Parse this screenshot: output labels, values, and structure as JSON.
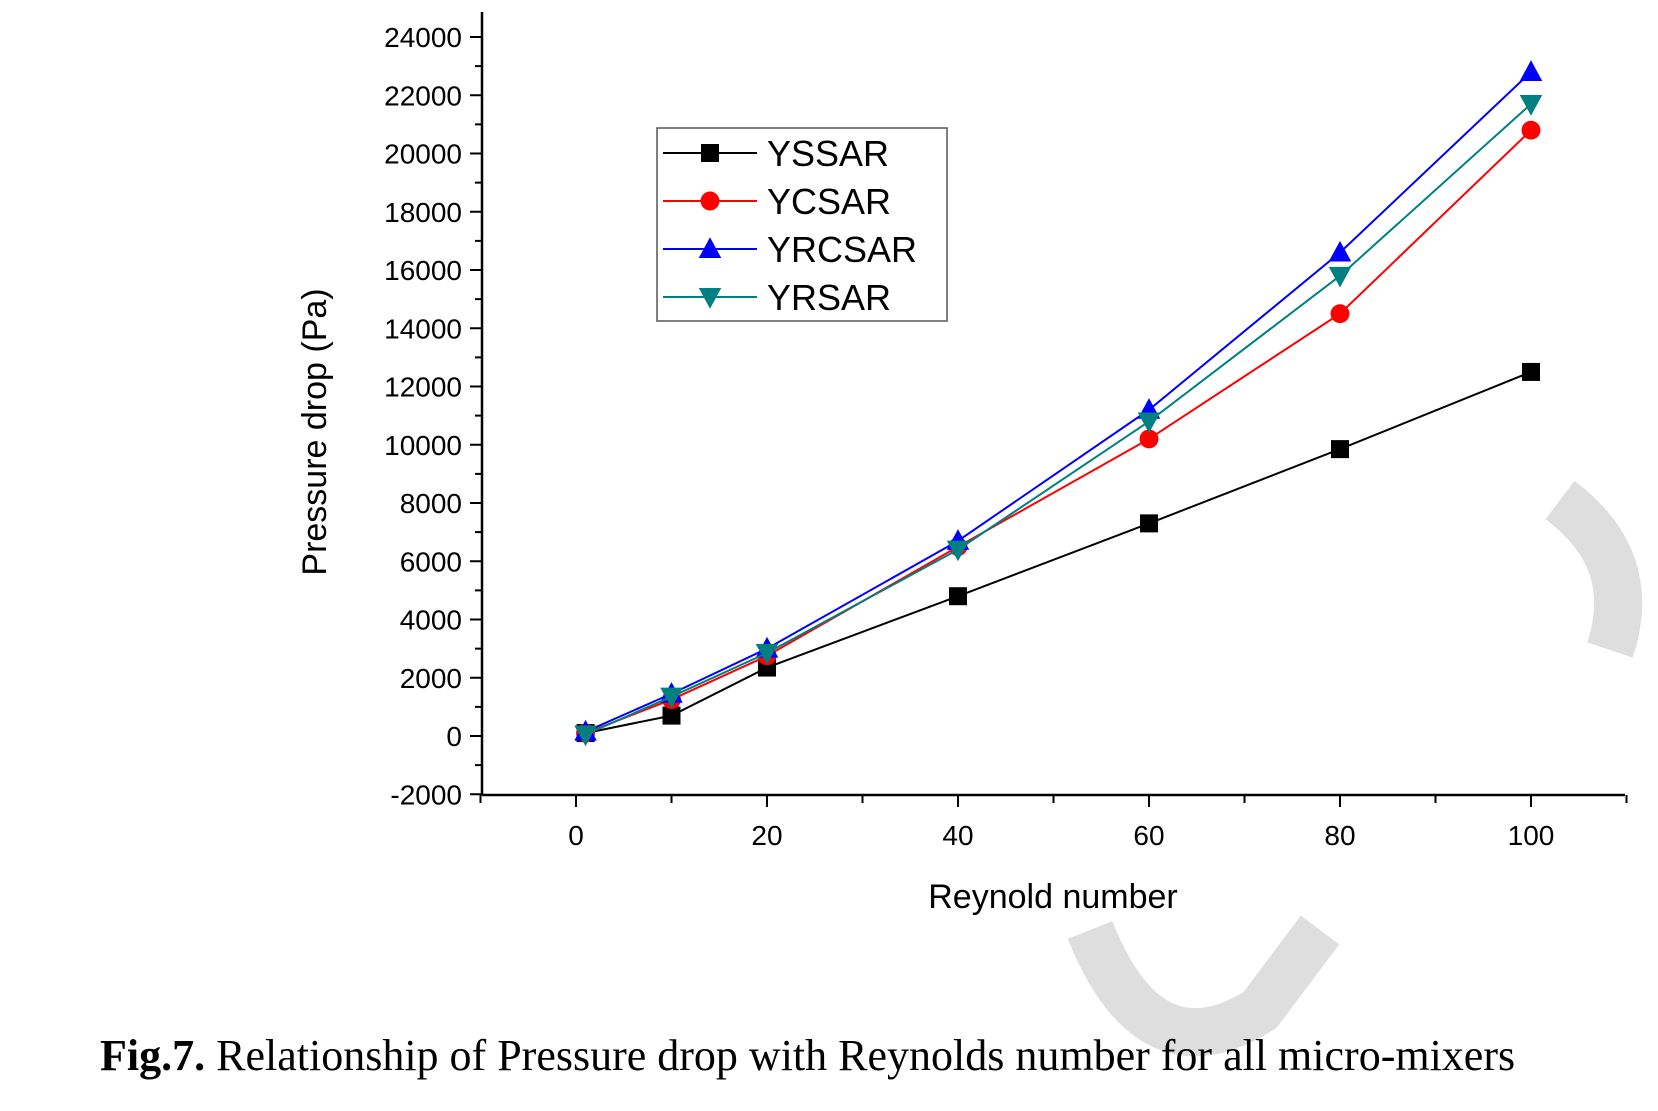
{
  "chart_data": {
    "type": "line",
    "xlabel": "Reynold number",
    "ylabel": "Pressure drop (Pa)",
    "xlim": [
      -10,
      110
    ],
    "ylim": [
      -2000,
      24500
    ],
    "xticks": [
      0,
      20,
      40,
      60,
      80,
      100
    ],
    "yticks": [
      -2000,
      0,
      2000,
      4000,
      6000,
      8000,
      10000,
      12000,
      14000,
      16000,
      18000,
      20000,
      22000,
      24000
    ],
    "grid": false,
    "legend_position": "top-left",
    "series": [
      {
        "name": "YSSAR",
        "color": "#000000",
        "marker": "square",
        "x": [
          1,
          10,
          20,
          40,
          60,
          80,
          100
        ],
        "y": [
          100,
          700,
          2350,
          4800,
          7300,
          9850,
          12500
        ]
      },
      {
        "name": "YCSAR",
        "color": "#ff0000",
        "marker": "circle",
        "x": [
          1,
          10,
          20,
          40,
          60,
          80,
          100
        ],
        "y": [
          100,
          1250,
          2750,
          6500,
          10200,
          14500,
          20800
        ]
      },
      {
        "name": "YRCSAR",
        "color": "#0000ff",
        "marker": "triangle-up",
        "x": [
          1,
          10,
          20,
          40,
          60,
          80,
          100
        ],
        "y": [
          150,
          1450,
          3000,
          6700,
          11200,
          16600,
          22800
        ]
      },
      {
        "name": "YRSAR",
        "color": "#008080",
        "marker": "triangle-down",
        "x": [
          1,
          10,
          20,
          40,
          60,
          80,
          100
        ],
        "y": [
          50,
          1350,
          2850,
          6400,
          10800,
          15800,
          21700
        ]
      }
    ]
  },
  "caption": {
    "label": "Fig.7.",
    "text": " Relationship of Pressure drop with Reynolds number for all micro-mixers"
  }
}
